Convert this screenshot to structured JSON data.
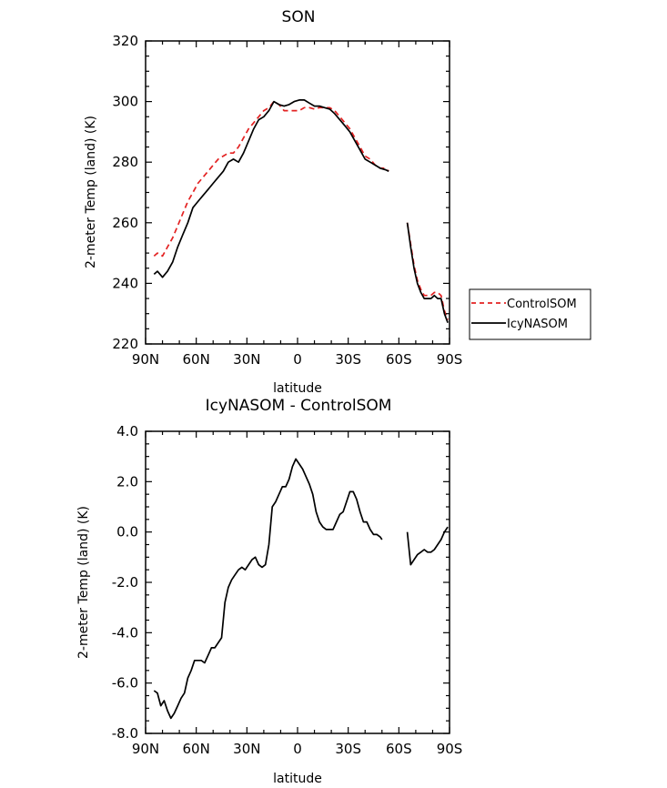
{
  "chart_data": [
    {
      "type": "line",
      "title": "SON",
      "xlabel": "latitude",
      "ylabel": "2-meter Temp (land) (K)",
      "xlim": [
        90,
        -90
      ],
      "ylim": [
        220,
        320
      ],
      "x_ticks": [
        {
          "v": 90,
          "label": "90N"
        },
        {
          "v": 60,
          "label": "60N"
        },
        {
          "v": 30,
          "label": "30N"
        },
        {
          "v": 0,
          "label": "0"
        },
        {
          "v": -30,
          "label": "30S"
        },
        {
          "v": -60,
          "label": "60S"
        },
        {
          "v": -90,
          "label": "90S"
        }
      ],
      "y_ticks": [
        {
          "v": 220,
          "label": "220"
        },
        {
          "v": 240,
          "label": "240"
        },
        {
          "v": 260,
          "label": "260"
        },
        {
          "v": 280,
          "label": "280"
        },
        {
          "v": 300,
          "label": "300"
        },
        {
          "v": 320,
          "label": "320"
        }
      ],
      "legend": {
        "placement": "right",
        "entries": [
          "ControlSOM",
          "IcyNASOM"
        ]
      },
      "series": [
        {
          "name": "ControlSOM",
          "color": "#e32222",
          "style": "dashed",
          "segments": [
            [
              [
                85,
                249
              ],
              [
                83,
                250
              ],
              [
                80,
                249
              ],
              [
                77,
                252
              ],
              [
                74,
                255
              ],
              [
                71,
                259
              ],
              [
                68,
                263
              ],
              [
                65,
                267
              ],
              [
                62,
                270
              ],
              [
                59,
                273
              ],
              [
                56,
                275
              ],
              [
                53,
                277
              ],
              [
                50,
                279
              ],
              [
                47,
                281
              ],
              [
                44,
                282
              ],
              [
                41,
                283
              ],
              [
                38,
                283
              ],
              [
                35,
                285
              ],
              [
                32,
                288
              ],
              [
                29,
                291
              ],
              [
                26,
                293
              ],
              [
                23,
                295
              ],
              [
                20,
                297
              ],
              [
                17,
                298
              ],
              [
                14,
                300
              ],
              [
                11,
                299
              ],
              [
                8,
                297
              ],
              [
                5,
                297
              ],
              [
                2,
                297
              ],
              [
                -1,
                297
              ],
              [
                -4,
                298
              ],
              [
                -7,
                298
              ],
              [
                -10,
                297.5
              ],
              [
                -13,
                298
              ],
              [
                -16,
                298
              ],
              [
                -19,
                298
              ],
              [
                -22,
                297
              ],
              [
                -25,
                295
              ],
              [
                -28,
                293
              ],
              [
                -31,
                291
              ],
              [
                -34,
                288
              ],
              [
                -37,
                285
              ],
              [
                -40,
                282
              ],
              [
                -43,
                281
              ],
              [
                -46,
                279
              ],
              [
                -49,
                278
              ],
              [
                -52,
                278
              ],
              [
                -54,
                277
              ]
            ],
            [
              [
                -65,
                260
              ],
              [
                -67,
                253
              ],
              [
                -69,
                246
              ],
              [
                -71,
                241
              ],
              [
                -73,
                238
              ],
              [
                -75,
                236
              ],
              [
                -77,
                236
              ],
              [
                -79,
                236
              ],
              [
                -81,
                237
              ],
              [
                -83,
                237
              ],
              [
                -85,
                236
              ],
              [
                -87,
                231
              ],
              [
                -89,
                228
              ]
            ]
          ]
        },
        {
          "name": "IcyNASOM",
          "color": "#000000",
          "style": "solid",
          "segments": [
            [
              [
                85,
                243
              ],
              [
                83,
                244
              ],
              [
                80,
                242
              ],
              [
                77,
                244
              ],
              [
                74,
                247
              ],
              [
                71,
                252
              ],
              [
                68,
                256
              ],
              [
                65,
                260
              ],
              [
                62,
                265
              ],
              [
                59,
                267
              ],
              [
                56,
                269
              ],
              [
                53,
                271
              ],
              [
                50,
                273
              ],
              [
                47,
                275
              ],
              [
                44,
                277
              ],
              [
                41,
                280
              ],
              [
                38,
                281
              ],
              [
                35,
                280
              ],
              [
                32,
                283
              ],
              [
                29,
                287
              ],
              [
                26,
                291
              ],
              [
                23,
                294
              ],
              [
                20,
                295
              ],
              [
                17,
                297
              ],
              [
                14,
                300
              ],
              [
                11,
                299
              ],
              [
                8,
                298.5
              ],
              [
                5,
                299
              ],
              [
                2,
                300
              ],
              [
                -1,
                300.5
              ],
              [
                -4,
                300.5
              ],
              [
                -7,
                299.5
              ],
              [
                -10,
                298.5
              ],
              [
                -13,
                298.5
              ],
              [
                -16,
                298
              ],
              [
                -19,
                297.5
              ],
              [
                -22,
                296
              ],
              [
                -25,
                294
              ],
              [
                -28,
                292
              ],
              [
                -31,
                290
              ],
              [
                -34,
                287
              ],
              [
                -37,
                284
              ],
              [
                -40,
                281
              ],
              [
                -43,
                280
              ],
              [
                -46,
                279
              ],
              [
                -49,
                278
              ],
              [
                -52,
                277.5
              ],
              [
                -54,
                277
              ]
            ],
            [
              [
                -65,
                260
              ],
              [
                -67,
                252
              ],
              [
                -69,
                245
              ],
              [
                -71,
                240
              ],
              [
                -73,
                237
              ],
              [
                -75,
                235
              ],
              [
                -77,
                235
              ],
              [
                -79,
                235
              ],
              [
                -81,
                236
              ],
              [
                -83,
                235
              ],
              [
                -85,
                235
              ],
              [
                -87,
                230
              ],
              [
                -89,
                227
              ]
            ]
          ]
        }
      ]
    },
    {
      "type": "line",
      "title": "IcyNASOM - ControlSOM",
      "xlabel": "latitude",
      "ylabel": "2-meter Temp (land) (K)",
      "xlim": [
        90,
        -90
      ],
      "ylim": [
        -8,
        4
      ],
      "x_ticks": [
        {
          "v": 90,
          "label": "90N"
        },
        {
          "v": 60,
          "label": "60N"
        },
        {
          "v": 30,
          "label": "30N"
        },
        {
          "v": 0,
          "label": "0"
        },
        {
          "v": -30,
          "label": "30S"
        },
        {
          "v": -60,
          "label": "60S"
        },
        {
          "v": -90,
          "label": "90S"
        }
      ],
      "y_ticks": [
        {
          "v": -8,
          "label": "-8.0"
        },
        {
          "v": -6,
          "label": "-6.0"
        },
        {
          "v": -4,
          "label": "-4.0"
        },
        {
          "v": -2,
          "label": "-2.0"
        },
        {
          "v": 0,
          "label": "0.0"
        },
        {
          "v": 2,
          "label": "2.0"
        },
        {
          "v": 4,
          "label": "4.0"
        }
      ],
      "series": [
        {
          "color": "#000000",
          "style": "solid",
          "segments": [
            [
              [
                85,
                -6.3
              ],
              [
                83,
                -6.4
              ],
              [
                81,
                -6.9
              ],
              [
                79,
                -6.7
              ],
              [
                77,
                -7.1
              ],
              [
                75,
                -7.4
              ],
              [
                73,
                -7.2
              ],
              [
                71,
                -6.9
              ],
              [
                69,
                -6.6
              ],
              [
                67,
                -6.4
              ],
              [
                65,
                -5.8
              ],
              [
                63,
                -5.5
              ],
              [
                61,
                -5.1
              ],
              [
                59,
                -5.1
              ],
              [
                57,
                -5.1
              ],
              [
                55,
                -5.2
              ],
              [
                53,
                -4.9
              ],
              [
                51,
                -4.6
              ],
              [
                49,
                -4.6
              ],
              [
                47,
                -4.4
              ],
              [
                45,
                -4.2
              ],
              [
                43,
                -2.8
              ],
              [
                41,
                -2.2
              ],
              [
                39,
                -1.9
              ],
              [
                37,
                -1.7
              ],
              [
                35,
                -1.5
              ],
              [
                33,
                -1.4
              ],
              [
                31,
                -1.5
              ],
              [
                29,
                -1.3
              ],
              [
                27,
                -1.1
              ],
              [
                25,
                -1.0
              ],
              [
                23,
                -1.3
              ],
              [
                21,
                -1.4
              ],
              [
                19,
                -1.3
              ],
              [
                17,
                -0.5
              ],
              [
                15,
                1.0
              ],
              [
                13,
                1.2
              ],
              [
                11,
                1.5
              ],
              [
                9,
                1.8
              ],
              [
                7,
                1.8
              ],
              [
                5,
                2.1
              ],
              [
                3,
                2.6
              ],
              [
                1,
                2.9
              ],
              [
                -1,
                2.7
              ],
              [
                -3,
                2.5
              ],
              [
                -5,
                2.2
              ],
              [
                -7,
                1.9
              ],
              [
                -9,
                1.5
              ],
              [
                -11,
                0.8
              ],
              [
                -13,
                0.4
              ],
              [
                -15,
                0.2
              ],
              [
                -17,
                0.1
              ],
              [
                -19,
                0.1
              ],
              [
                -21,
                0.1
              ],
              [
                -23,
                0.4
              ],
              [
                -25,
                0.7
              ],
              [
                -27,
                0.8
              ],
              [
                -29,
                1.2
              ],
              [
                -31,
                1.6
              ],
              [
                -33,
                1.6
              ],
              [
                -35,
                1.3
              ],
              [
                -37,
                0.8
              ],
              [
                -39,
                0.4
              ],
              [
                -41,
                0.4
              ],
              [
                -43,
                0.1
              ],
              [
                -45,
                -0.1
              ],
              [
                -47,
                -0.1
              ],
              [
                -49,
                -0.2
              ],
              [
                -50,
                -0.3
              ]
            ],
            [
              [
                -65,
                0.0
              ],
              [
                -67,
                -1.3
              ],
              [
                -69,
                -1.1
              ],
              [
                -71,
                -0.9
              ],
              [
                -73,
                -0.8
              ],
              [
                -75,
                -0.7
              ],
              [
                -77,
                -0.8
              ],
              [
                -79,
                -0.8
              ],
              [
                -81,
                -0.7
              ],
              [
                -83,
                -0.5
              ],
              [
                -85,
                -0.3
              ],
              [
                -87,
                0.0
              ],
              [
                -89,
                0.2
              ]
            ]
          ]
        }
      ]
    }
  ]
}
